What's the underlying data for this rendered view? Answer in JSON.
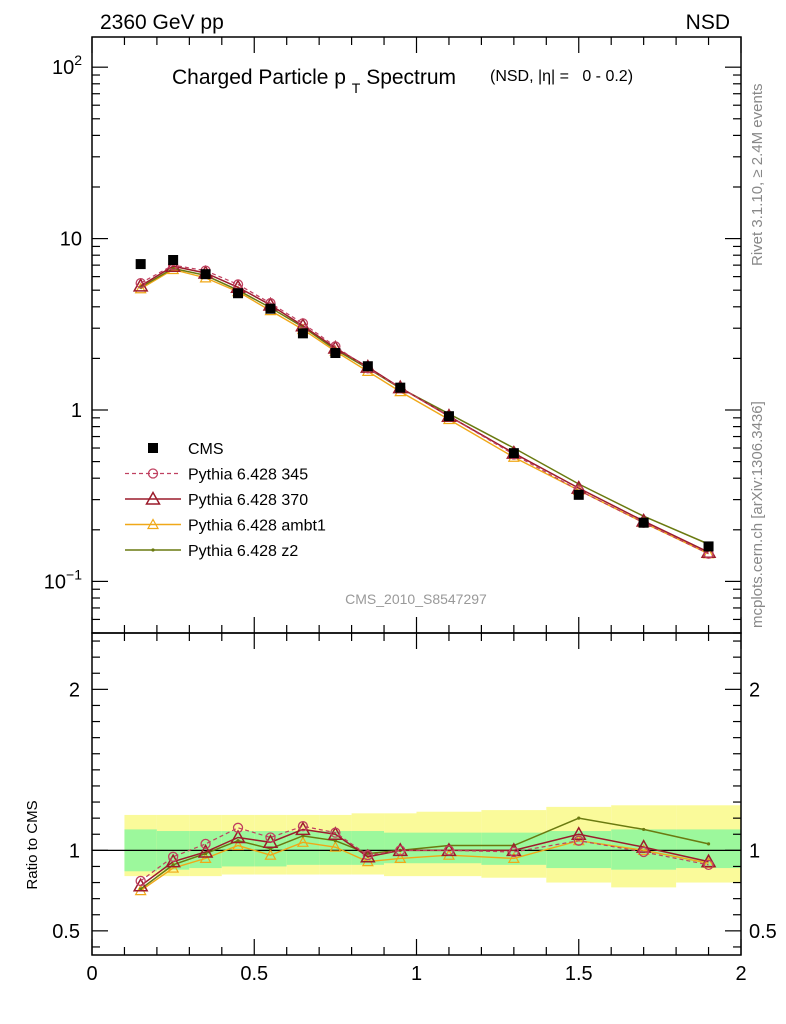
{
  "header": {
    "energy_label": "2360 GeV pp",
    "process_label": "NSD"
  },
  "side_labels": {
    "rivet": "Rivet 3.1.10, ≥ 2.4M events",
    "mcplots": "mcplots.cern.ch [arXiv:1306.3436]"
  },
  "analysis_id": "CMS_2010_S8547297",
  "colors": {
    "cms": "#000000",
    "p345": "#c04060",
    "p370": "#9c1c2c",
    "ambt1": "#f0a818",
    "z2": "#6a7a10",
    "band_inner": "#9cf89c",
    "band_outer": "#fafa9a"
  },
  "chart_data": [
    {
      "type": "line",
      "title": "Charged Particle p_T Spectrum",
      "title_main": "Charged Particle p",
      "title_sub": "T",
      "title_rest": " Spectrum",
      "subtitle": "(NSD, |η| =   0 - 0.2)",
      "xlim": [
        0,
        2
      ],
      "ylim": [
        0.05,
        150
      ],
      "yscale": "log",
      "ytick_labels": [
        "10⁻¹",
        "1",
        "10",
        "10²"
      ],
      "legend_position": "bottom-left",
      "x": [
        0.15,
        0.25,
        0.35,
        0.45,
        0.55,
        0.65,
        0.75,
        0.85,
        0.95,
        1.1,
        1.3,
        1.5,
        1.7,
        1.9
      ],
      "series": [
        {
          "name": "CMS",
          "key": "cms",
          "values": [
            7.1,
            7.5,
            6.2,
            4.8,
            3.9,
            2.8,
            2.15,
            1.8,
            1.35,
            0.92,
            0.56,
            0.32,
            0.22,
            0.16
          ]
        },
        {
          "name": "Pythia 6.428 345",
          "key": "p345",
          "values": [
            5.5,
            7.0,
            6.5,
            5.4,
            4.2,
            3.2,
            2.35,
            1.75,
            1.35,
            0.92,
            0.55,
            0.34,
            0.22,
            0.145
          ]
        },
        {
          "name": "Pythia 6.428 370",
          "key": "p370",
          "values": [
            5.3,
            6.9,
            6.3,
            5.2,
            4.1,
            3.1,
            2.3,
            1.78,
            1.35,
            0.92,
            0.56,
            0.35,
            0.225,
            0.148
          ]
        },
        {
          "name": "Pythia 6.428 ambt1",
          "key": "ambt1",
          "values": [
            5.1,
            6.6,
            5.9,
            4.9,
            3.8,
            2.95,
            2.2,
            1.68,
            1.28,
            0.88,
            0.53,
            0.34,
            0.22,
            0.145
          ]
        },
        {
          "name": "Pythia 6.428 z2",
          "key": "z2",
          "values": [
            5.2,
            6.7,
            6.1,
            5.0,
            3.95,
            3.05,
            2.25,
            1.75,
            1.34,
            0.95,
            0.6,
            0.37,
            0.24,
            0.165
          ]
        }
      ]
    },
    {
      "type": "line",
      "ylabel": "Ratio to CMS",
      "xlim": [
        0,
        2
      ],
      "ylim": [
        0.35,
        2.35
      ],
      "xtick_labels": [
        "0",
        "0.5",
        "1",
        "1.5",
        "2"
      ],
      "ytick_labels": [
        "0.5",
        "1",
        "2"
      ],
      "reference_line": 1,
      "x": [
        0.15,
        0.25,
        0.35,
        0.45,
        0.55,
        0.65,
        0.75,
        0.85,
        0.95,
        1.1,
        1.3,
        1.5,
        1.7,
        1.9
      ],
      "bins": [
        [
          0.1,
          0.2
        ],
        [
          0.2,
          0.3
        ],
        [
          0.3,
          0.4
        ],
        [
          0.4,
          0.5
        ],
        [
          0.5,
          0.6
        ],
        [
          0.6,
          0.7
        ],
        [
          0.7,
          0.8
        ],
        [
          0.8,
          0.9
        ],
        [
          0.9,
          1.0
        ],
        [
          1.0,
          1.2
        ],
        [
          1.2,
          1.4
        ],
        [
          1.4,
          1.6
        ],
        [
          1.6,
          1.8
        ],
        [
          1.8,
          2.0
        ]
      ],
      "band_inner": [
        [
          0.87,
          1.13
        ],
        [
          0.88,
          1.12
        ],
        [
          0.89,
          1.12
        ],
        [
          0.9,
          1.12
        ],
        [
          0.9,
          1.12
        ],
        [
          0.91,
          1.12
        ],
        [
          0.91,
          1.12
        ],
        [
          0.91,
          1.12
        ],
        [
          0.92,
          1.11
        ],
        [
          0.92,
          1.11
        ],
        [
          0.91,
          1.11
        ],
        [
          0.89,
          1.12
        ],
        [
          0.88,
          1.13
        ],
        [
          0.89,
          1.13
        ]
      ],
      "band_outer": [
        [
          0.84,
          1.22
        ],
        [
          0.84,
          1.22
        ],
        [
          0.84,
          1.22
        ],
        [
          0.85,
          1.22
        ],
        [
          0.85,
          1.22
        ],
        [
          0.85,
          1.22
        ],
        [
          0.85,
          1.22
        ],
        [
          0.85,
          1.23
        ],
        [
          0.84,
          1.23
        ],
        [
          0.84,
          1.24
        ],
        [
          0.83,
          1.25
        ],
        [
          0.8,
          1.27
        ],
        [
          0.77,
          1.28
        ],
        [
          0.8,
          1.28
        ]
      ],
      "series": [
        {
          "name": "Pythia 6.428 345",
          "key": "p345",
          "values": [
            0.81,
            0.96,
            1.04,
            1.14,
            1.08,
            1.15,
            1.11,
            0.97,
            1.0,
            1.0,
            0.99,
            1.06,
            0.99,
            0.91
          ]
        },
        {
          "name": "Pythia 6.428 370",
          "key": "p370",
          "values": [
            0.78,
            0.93,
            0.99,
            1.08,
            1.05,
            1.13,
            1.1,
            0.96,
            1.0,
            1.0,
            1.0,
            1.1,
            1.02,
            0.93
          ]
        },
        {
          "name": "Pythia 6.428 ambt1",
          "key": "ambt1",
          "values": [
            0.75,
            0.89,
            0.95,
            1.03,
            0.97,
            1.05,
            1.02,
            0.93,
            0.95,
            0.97,
            0.95,
            1.06,
            1.0,
            0.92
          ]
        },
        {
          "name": "Pythia 6.428 z2",
          "key": "z2",
          "values": [
            0.76,
            0.91,
            0.98,
            1.06,
            1.01,
            1.09,
            1.06,
            0.98,
            1.0,
            1.03,
            1.03,
            1.2,
            1.13,
            1.04
          ]
        }
      ]
    }
  ]
}
